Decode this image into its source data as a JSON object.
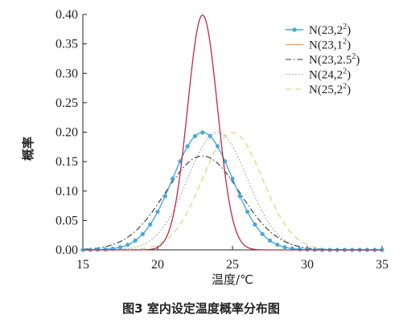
{
  "chart_data": {
    "type": "line",
    "xlabel": "温度/℃",
    "ylabel": "概率",
    "caption": "图3  室内设定温度概率分布图",
    "xlim": [
      15,
      35
    ],
    "ylim": [
      0,
      0.4
    ],
    "xticks": [
      "15",
      "20",
      "25",
      "30",
      "35"
    ],
    "yticks": [
      "0.00",
      "0.05",
      "0.10",
      "0.15",
      "0.20",
      "0.25",
      "0.30",
      "0.35",
      "0.40"
    ],
    "grid": false,
    "legend_position": "top-right",
    "series": [
      {
        "name": "N(23,2²)",
        "legend_base": "N(23,2",
        "legend_tail": ")",
        "mean": 23,
        "sd": 2,
        "color": "#4aa8dc",
        "style": "line-dots"
      },
      {
        "name": "N(23,1²)",
        "legend_base": "N(23,1",
        "legend_tail": ")",
        "mean": 23,
        "sd": 1,
        "color": "#c0284a",
        "legend_color": "#e8a070",
        "style": "solid"
      },
      {
        "name": "N(23,2.5²)",
        "legend_base": "N(23,2.5",
        "legend_tail": ")",
        "mean": 23,
        "sd": 2.5,
        "color": "#333333",
        "style": "dash-dot"
      },
      {
        "name": "N(24,2²)",
        "legend_base": "N(24,2",
        "legend_tail": ")",
        "mean": 24,
        "sd": 2,
        "color": "#999999",
        "style": "dotted"
      },
      {
        "name": "N(25,2²)",
        "legend_base": "N(25,2",
        "legend_tail": ")",
        "mean": 25,
        "sd": 2,
        "color": "#d8d880",
        "style": "dashed"
      }
    ]
  }
}
